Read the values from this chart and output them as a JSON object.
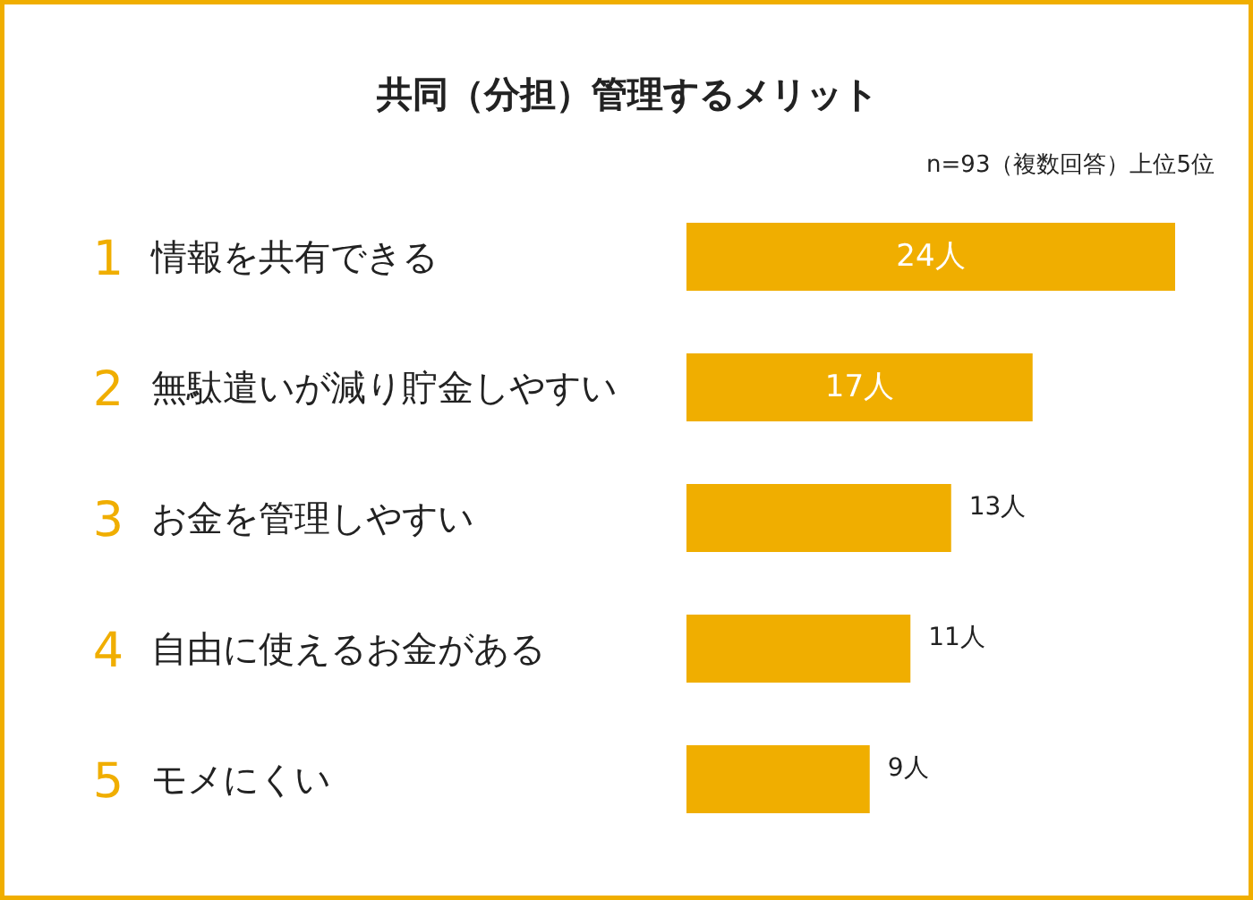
{
  "chart_data": {
    "type": "bar",
    "orientation": "horizontal",
    "title": "共同（分担）管理するメリット",
    "annotations": [
      "n=93（複数回答）上位5位"
    ],
    "categories": [
      "1 情報を共有できる",
      "2 無駄遣いが減り貯金しやすい",
      "3 お金を管理しやすい",
      "4 自由に使えるお金がある",
      "5 モメにくい"
    ],
    "values": [
      24,
      17,
      13,
      11,
      9
    ],
    "value_labels": [
      "24人",
      "17人",
      "13人",
      "11人",
      "9人"
    ],
    "color": "#f0ae00",
    "tick_labels": false,
    "grid": false
  }
}
